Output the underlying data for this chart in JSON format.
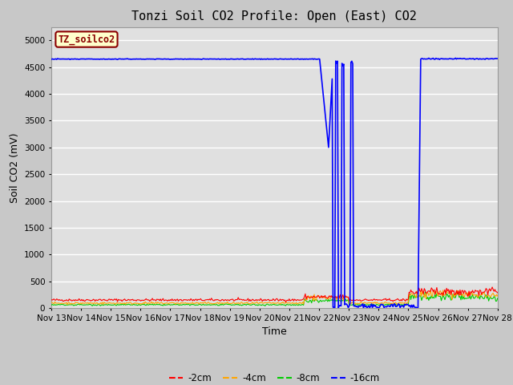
{
  "title": "Tonzi Soil CO2 Profile: Open (East) CO2",
  "xlabel": "Time",
  "ylabel": "Soil CO2 (mV)",
  "ylim": [
    0,
    5250
  ],
  "yticks": [
    0,
    500,
    1000,
    1500,
    2000,
    2500,
    3000,
    3500,
    4000,
    4500,
    5000
  ],
  "fig_bg_color": "#c8c8c8",
  "plot_bg_color": "#e0e0e0",
  "legend_label": "TZ_soilco2",
  "series_colors": {
    "-2cm": "#ff0000",
    "-4cm": "#ffa500",
    "-8cm": "#00cc00",
    "-16cm": "#0000ff"
  },
  "xtick_labels": [
    "Nov 13",
    "Nov 14",
    "Nov 15",
    "Nov 16",
    "Nov 17",
    "Nov 18",
    "Nov 19",
    "Nov 20",
    "Nov 21",
    "Nov 22",
    "Nov 23",
    "Nov 24",
    "Nov 25",
    "Nov 26",
    "Nov 27",
    "Nov 28"
  ],
  "title_fontsize": 11,
  "axis_label_fontsize": 9,
  "tick_fontsize": 7.5
}
